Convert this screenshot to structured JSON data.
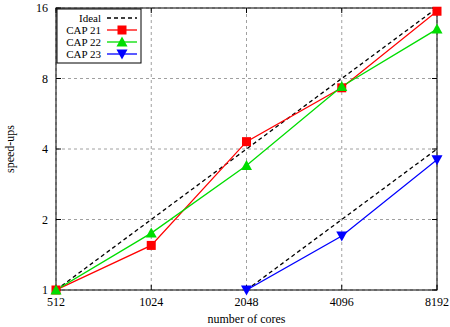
{
  "chart_data": {
    "type": "line",
    "x_label": "number of cores",
    "y_label": "speed-ups",
    "x": [
      512,
      1024,
      2048,
      4096,
      8192
    ],
    "xlim": [
      512,
      8192
    ],
    "xticks": [
      512,
      1024,
      2048,
      4096,
      8192
    ],
    "ylim": [
      1,
      16
    ],
    "yticks": [
      1,
      2,
      4,
      8,
      16
    ],
    "log": true,
    "grid": true,
    "legend": "upper left",
    "series": [
      {
        "name": "Ideal",
        "color": "#000000",
        "line_style": "dashed",
        "marker": "none",
        "x": [
          512,
          8192,
          null,
          2048,
          8192
        ],
        "values": [
          1,
          16,
          null,
          1,
          4
        ]
      },
      {
        "name": "CAP 21",
        "color": "#ff0000",
        "line_style": "solid",
        "marker": "square",
        "values": [
          1,
          1.55,
          4.3,
          7.3,
          15.5
        ]
      },
      {
        "name": "CAP 22",
        "color": "#00dd00",
        "line_style": "solid",
        "marker": "triangle",
        "values": [
          1,
          1.75,
          3.4,
          7.4,
          13
        ]
      },
      {
        "name": "CAP 23",
        "color": "#0000ff",
        "line_style": "solid",
        "marker": "triangle_down",
        "values": [
          null,
          null,
          1,
          1.7,
          3.6
        ]
      }
    ]
  }
}
